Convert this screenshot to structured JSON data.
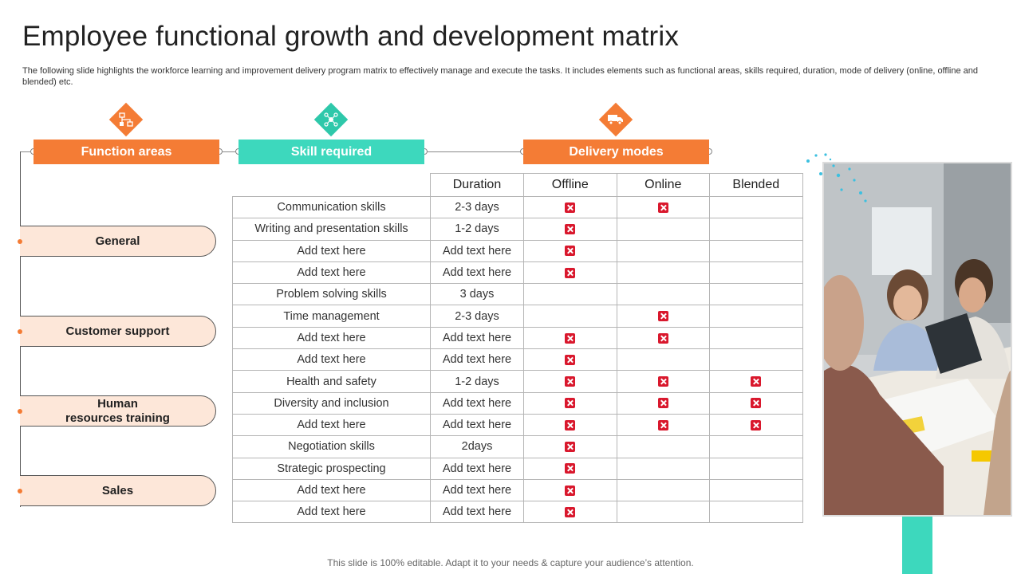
{
  "slide": {
    "title": "Employee functional growth and development matrix",
    "subtitle": "The following slide highlights the workforce learning and improvement delivery program matrix to effectively  manage and execute the tasks. It includes elements such as functional areas, skills required, duration, mode of delivery (online, offline and blended) etc.",
    "footer": "This slide is 100% editable. Adapt it to your needs & capture your audience’s attention."
  },
  "headers": {
    "function_areas": "Function areas",
    "skill_required": "Skill required",
    "delivery_modes": "Delivery modes"
  },
  "icons": {
    "function_areas": "org-chart-icon",
    "skill_required": "network-people-icon",
    "delivery_modes": "delivery-truck-icon"
  },
  "function_areas": [
    {
      "label": "General"
    },
    {
      "label": "Customer support"
    },
    {
      "label": "Human\nresources training"
    },
    {
      "label": "Sales"
    }
  ],
  "table": {
    "columns": [
      "Duration",
      "Offline",
      "Online",
      "Blended"
    ],
    "rows": [
      {
        "skill": "Communication skills",
        "duration": "2-3 days",
        "offline": true,
        "online": true,
        "blended": false
      },
      {
        "skill": "Writing and presentation skills",
        "duration": "1-2 days",
        "offline": true,
        "online": false,
        "blended": false
      },
      {
        "skill": "Add text here",
        "duration": "Add text here",
        "offline": true,
        "online": false,
        "blended": false
      },
      {
        "skill": "Add text here",
        "duration": "Add text here",
        "offline": true,
        "online": false,
        "blended": false
      },
      {
        "skill": "Problem solving skills",
        "duration": "3 days",
        "offline": false,
        "online": false,
        "blended": false
      },
      {
        "skill": "Time management",
        "duration": "2-3 days",
        "offline": false,
        "online": true,
        "blended": false
      },
      {
        "skill": "Add text here",
        "duration": "Add text here",
        "offline": true,
        "online": true,
        "blended": false
      },
      {
        "skill": "Add text here",
        "duration": "Add text here",
        "offline": true,
        "online": false,
        "blended": false
      },
      {
        "skill": "Health and safety",
        "duration": "1-2 days",
        "offline": true,
        "online": true,
        "blended": true
      },
      {
        "skill": "Diversity and inclusion",
        "duration": "Add text here",
        "offline": true,
        "online": true,
        "blended": true
      },
      {
        "skill": "Add text here",
        "duration": "Add text here",
        "offline": true,
        "online": true,
        "blended": true
      },
      {
        "skill": "Negotiation skills",
        "duration": "2days",
        "offline": true,
        "online": false,
        "blended": false
      },
      {
        "skill": "Strategic prospecting",
        "duration": "Add text here",
        "offline": true,
        "online": false,
        "blended": false
      },
      {
        "skill": "Add text here",
        "duration": "Add text here",
        "offline": true,
        "online": false,
        "blended": false
      },
      {
        "skill": "Add text here",
        "duration": "Add text here",
        "offline": true,
        "online": false,
        "blended": false
      }
    ]
  },
  "colors": {
    "orange": "#f47c35",
    "teal": "#3dd8bd",
    "area_fill": "#fde7d9",
    "check_red": "#d9182d"
  }
}
